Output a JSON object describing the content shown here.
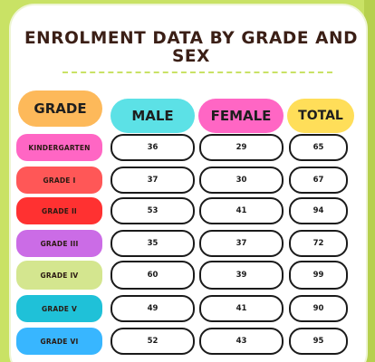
{
  "title": "ENROLMENT DATA BY GRADE AND SEX",
  "headers": {
    "grade": "GRADE",
    "male": "MALE",
    "female": "FEMALE",
    "total": "TOTAL"
  },
  "colors": {
    "background": "#c9e265",
    "grade_header": "#fdb95a",
    "male_header": "#5ce1e6",
    "female_header": "#ff66c4",
    "total_header": "#ffde59"
  },
  "rows": [
    {
      "grade": "KINDERGARTEN",
      "male": "36",
      "female": "29",
      "total": "65",
      "color": "#ff66c4"
    },
    {
      "grade": "GRADE I",
      "male": "37",
      "female": "30",
      "total": "67",
      "color": "#ff5757"
    },
    {
      "grade": "GRADE II",
      "male": "53",
      "female": "41",
      "total": "94",
      "color": "#ff3131"
    },
    {
      "grade": "GRADE III",
      "male": "35",
      "female": "37",
      "total": "72",
      "color": "#cb6ce6"
    },
    {
      "grade": "GRADE IV",
      "male": "60",
      "female": "39",
      "total": "99",
      "color": "#d4e68f"
    },
    {
      "grade": "GRADE V",
      "male": "49",
      "female": "41",
      "total": "90",
      "color": "#1fc1d8"
    },
    {
      "grade": "GRADE VI",
      "male": "52",
      "female": "43",
      "total": "95",
      "color": "#38b6ff"
    }
  ]
}
